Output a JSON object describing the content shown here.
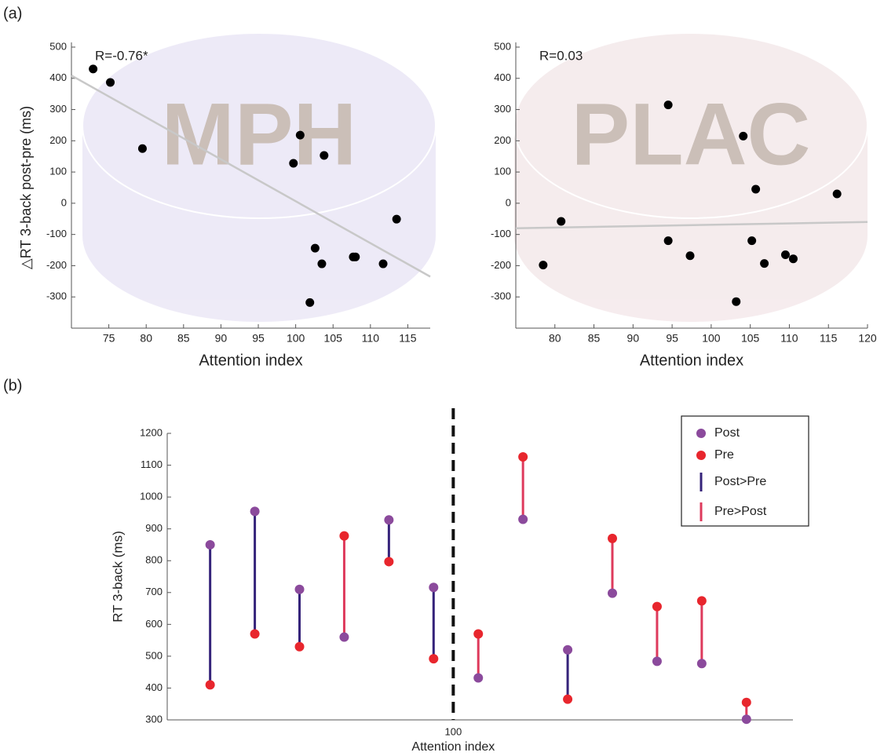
{
  "panels": [
    "(a)",
    "(b)"
  ],
  "chart_data": [
    {
      "type": "scatter",
      "annotation": "R=-0.76*",
      "watermark": "MPH",
      "xlabel": "Attention index",
      "ylabel": "△RT 3-back post-pre (ms)",
      "x": [
        72.9,
        75.2,
        79.5,
        100.6,
        99.7,
        103.8,
        113.5,
        102.6,
        103.5,
        107.7,
        108,
        111.7,
        101.9
      ],
      "y": [
        430,
        387,
        175,
        218,
        128,
        153,
        -51,
        -144,
        -194,
        -172,
        -172,
        -194,
        -318
      ],
      "color": "#000000",
      "fit": {
        "x": [
          70,
          118
        ],
        "y": [
          409,
          -235
        ],
        "color": "#c8c8c8"
      },
      "xlim": [
        70,
        118
      ],
      "xticks": [
        75,
        80,
        85,
        90,
        95,
        100,
        105,
        110,
        115
      ],
      "ylim": [
        -400,
        500
      ],
      "yticks": [
        -300,
        -200,
        -100,
        0,
        100,
        200,
        300,
        400,
        500
      ],
      "backdrop": "#ebe7f6"
    },
    {
      "type": "scatter",
      "annotation": "R=0.03",
      "watermark": "PLAC",
      "xlabel": "Attention index",
      "x": [
        78.5,
        80.8,
        94.5,
        104.1,
        94.5,
        97.3,
        105.7,
        105.2,
        106.8,
        109.5,
        110.5,
        116.1,
        103.2
      ],
      "y": [
        -198,
        -58,
        315,
        215,
        -120,
        -168,
        45,
        -120,
        -193,
        -165,
        -178,
        30,
        -315
      ],
      "color": "#000000",
      "fit": {
        "x": [
          75,
          120
        ],
        "y": [
          -80,
          -60
        ],
        "color": "#c8c8c8"
      },
      "xlim": [
        75,
        120
      ],
      "xticks": [
        80,
        85,
        90,
        95,
        100,
        105,
        110,
        115,
        120
      ],
      "ylim": [
        -400,
        500
      ],
      "yticks": [
        -300,
        -200,
        -100,
        0,
        100,
        200,
        300,
        400,
        500
      ],
      "backdrop": "#f4e9eb"
    },
    {
      "type": "dumbbell",
      "xlabel": "Attention index",
      "ylabel": "RT 3-back (ms)",
      "x": [
        86.4,
        88.9,
        91.4,
        93.9,
        96.4,
        98.9,
        101.4,
        103.9,
        106.4,
        108.9,
        111.4,
        113.9,
        116.4
      ],
      "series": [
        {
          "name": "Post",
          "color": "#8b4a9c",
          "values": [
            850,
            955,
            710,
            560,
            928,
            716,
            432,
            930,
            520,
            698,
            484,
            477,
            302
          ]
        },
        {
          "name": "Pre",
          "color": "#e8262d",
          "values": [
            410,
            570,
            530,
            878,
            797,
            492,
            570,
            1126,
            365,
            870,
            656,
            674,
            355
          ]
        }
      ],
      "connectors": [
        {
          "name": "Post>Pre",
          "color": "#35237a"
        },
        {
          "name": "Pre>Post",
          "color": "#de3a5c"
        }
      ],
      "xlim": [
        84,
        119
      ],
      "xticks": [
        100
      ],
      "ylim": [
        300,
        1200
      ],
      "yticks": [
        300,
        400,
        500,
        600,
        700,
        800,
        900,
        1000,
        1100,
        1200
      ]
    }
  ]
}
